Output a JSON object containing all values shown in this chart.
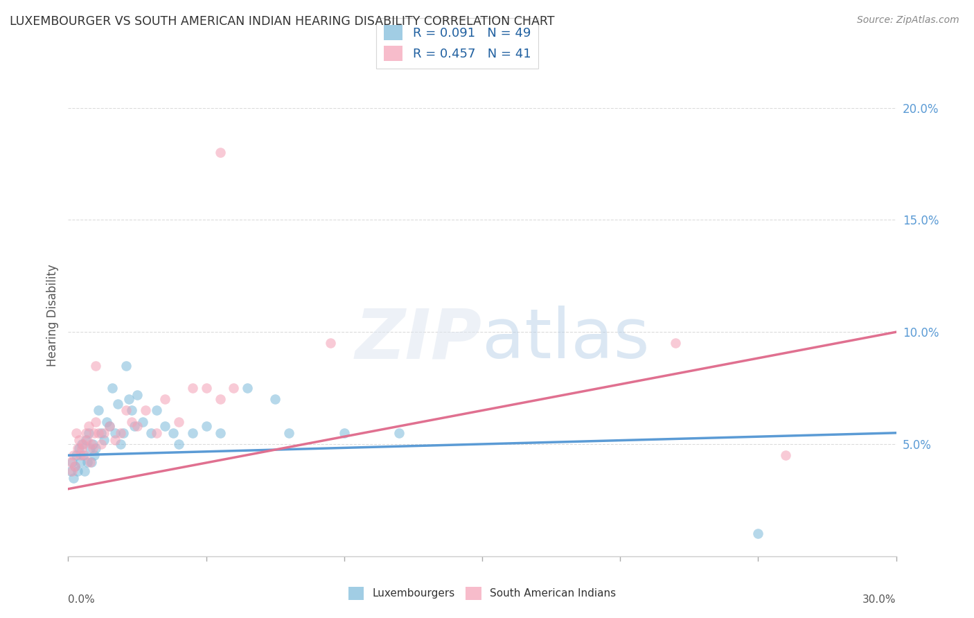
{
  "title": "LUXEMBOURGER VS SOUTH AMERICAN INDIAN HEARING DISABILITY CORRELATION CHART",
  "source": "Source: ZipAtlas.com",
  "ylabel": "Hearing Disability",
  "xlim": [
    0.0,
    30.0
  ],
  "ylim": [
    0.0,
    21.5
  ],
  "yticks": [
    5.0,
    10.0,
    15.0,
    20.0
  ],
  "ytick_labels": [
    "5.0%",
    "10.0%",
    "15.0%",
    "20.0%"
  ],
  "legend_r1": "R = 0.091",
  "legend_n1": "N = 49",
  "legend_r2": "R = 0.457",
  "legend_n2": "N = 41",
  "color_blue": "#7ab8d9",
  "color_pink": "#f4a0b5",
  "color_blue_line": "#5b9bd5",
  "color_pink_line": "#e07090",
  "background_color": "#ffffff",
  "blue_scatter_x": [
    0.1,
    0.15,
    0.2,
    0.25,
    0.3,
    0.35,
    0.4,
    0.45,
    0.5,
    0.55,
    0.6,
    0.65,
    0.7,
    0.75,
    0.8,
    0.85,
    0.9,
    0.95,
    1.0,
    1.1,
    1.2,
    1.3,
    1.4,
    1.5,
    1.6,
    1.7,
    1.8,
    1.9,
    2.0,
    2.1,
    2.2,
    2.3,
    2.4,
    2.5,
    2.7,
    3.0,
    3.2,
    3.5,
    3.8,
    4.0,
    4.5,
    5.0,
    5.5,
    6.5,
    7.5,
    8.0,
    10.0,
    12.0,
    25.0
  ],
  "blue_scatter_y": [
    3.8,
    4.2,
    3.5,
    4.0,
    4.5,
    3.8,
    4.8,
    4.2,
    5.0,
    4.5,
    3.8,
    5.2,
    4.2,
    5.5,
    4.8,
    4.2,
    5.0,
    4.5,
    4.8,
    6.5,
    5.5,
    5.2,
    6.0,
    5.8,
    7.5,
    5.5,
    6.8,
    5.0,
    5.5,
    8.5,
    7.0,
    6.5,
    5.8,
    7.2,
    6.0,
    5.5,
    6.5,
    5.8,
    5.5,
    5.0,
    5.5,
    5.8,
    5.5,
    7.5,
    7.0,
    5.5,
    5.5,
    5.5,
    1.0
  ],
  "pink_scatter_x": [
    0.1,
    0.15,
    0.2,
    0.25,
    0.3,
    0.35,
    0.4,
    0.45,
    0.5,
    0.55,
    0.6,
    0.65,
    0.7,
    0.75,
    0.8,
    0.85,
    0.9,
    0.95,
    1.0,
    1.1,
    1.2,
    1.3,
    1.5,
    1.7,
    1.9,
    2.1,
    2.3,
    2.5,
    2.8,
    3.2,
    3.5,
    4.0,
    4.5,
    5.0,
    5.5,
    6.0,
    9.5,
    22.0,
    26.0,
    5.5,
    1.0
  ],
  "pink_scatter_y": [
    4.2,
    3.8,
    4.5,
    4.0,
    5.5,
    4.8,
    5.2,
    4.5,
    4.8,
    5.0,
    4.5,
    5.5,
    5.2,
    5.8,
    4.2,
    5.0,
    4.8,
    5.5,
    6.0,
    5.5,
    5.0,
    5.5,
    5.8,
    5.2,
    5.5,
    6.5,
    6.0,
    5.8,
    6.5,
    5.5,
    7.0,
    6.0,
    7.5,
    7.5,
    7.0,
    7.5,
    9.5,
    9.5,
    4.5,
    18.0,
    8.5
  ],
  "blue_trend_x": [
    0.0,
    30.0
  ],
  "blue_trend_y": [
    4.5,
    5.5
  ],
  "pink_trend_x": [
    0.0,
    30.0
  ],
  "pink_trend_y": [
    3.0,
    10.0
  ],
  "watermark_zip": "ZIP",
  "watermark_atlas": "atlas",
  "watermark_zip_color": "#d0d8e8",
  "watermark_atlas_color": "#a8c4d8"
}
